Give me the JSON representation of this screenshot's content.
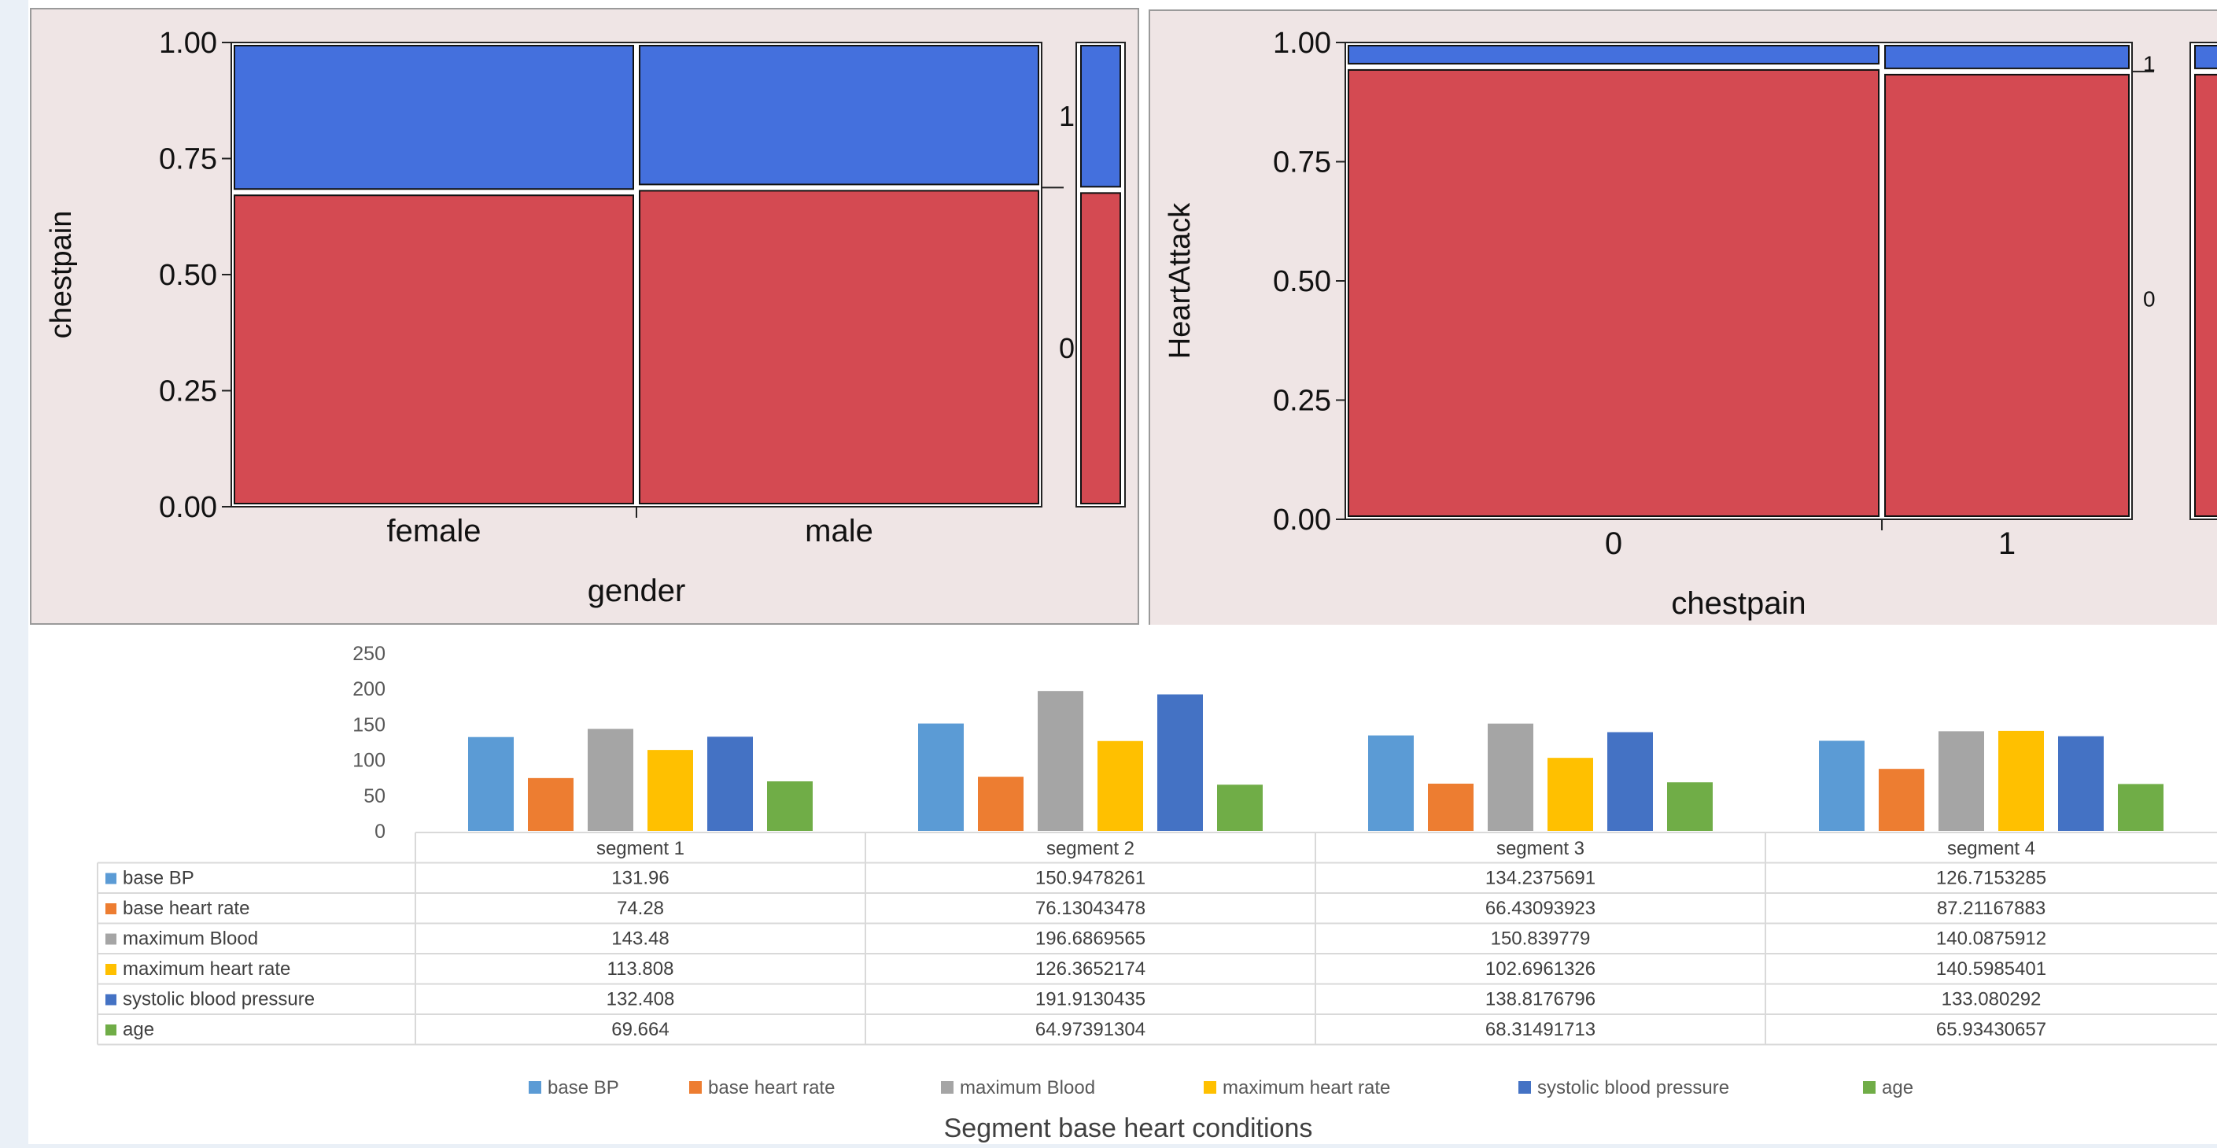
{
  "chart_data": [
    {
      "type": "mosaic",
      "xlabel": "gender",
      "ylabel": "chestpain",
      "yticks": [
        "0.00",
        "0.25",
        "0.50",
        "0.75",
        "1.00"
      ],
      "categories": [
        "female",
        "male"
      ],
      "widths": [
        0.5,
        0.5
      ],
      "levels": [
        "0",
        "1"
      ],
      "proportions": [
        {
          "category": "female",
          "0": 0.68,
          "1": 0.32
        },
        {
          "category": "male",
          "0": 0.69,
          "1": 0.31
        }
      ],
      "marginal": {
        "0": 0.685,
        "1": 0.315
      },
      "colors": {
        "0": "#d44a52",
        "1": "#4470dd"
      }
    },
    {
      "type": "mosaic",
      "xlabel": "chestpain",
      "ylabel": "HeartAttack",
      "yticks": [
        "0.00",
        "0.25",
        "0.50",
        "0.75",
        "1.00"
      ],
      "categories": [
        "0",
        "1"
      ],
      "widths": [
        0.685,
        0.315
      ],
      "levels": [
        "0",
        "1"
      ],
      "proportions": [
        {
          "category": "0",
          "0": 0.955,
          "1": 0.045
        },
        {
          "category": "1",
          "0": 0.945,
          "1": 0.055
        }
      ],
      "colors": {
        "0": "#d44a52",
        "1": "#4470dd"
      }
    },
    {
      "type": "bar",
      "title": "Segment base heart conditions",
      "categories": [
        "segment 1",
        "segment 2",
        "segment 3",
        "segment 4"
      ],
      "ylim": [
        0,
        250
      ],
      "yticks": [
        "0",
        "50",
        "100",
        "150",
        "200",
        "250"
      ],
      "legend_position": "bottom",
      "series": [
        {
          "name": "base BP",
          "color": "#5b9bd5",
          "values": [
            131.96,
            150.9478261,
            134.2375691,
            126.7153285
          ],
          "labels": [
            "131.96",
            "150.9478261",
            "134.2375691",
            "126.7153285"
          ]
        },
        {
          "name": "base heart rate",
          "color": "#ed7d31",
          "values": [
            74.28,
            76.13043478,
            66.43093923,
            87.21167883
          ],
          "labels": [
            "74.28",
            "76.13043478",
            "66.43093923",
            "87.21167883"
          ]
        },
        {
          "name": "maximum Blood",
          "color": "#a5a5a5",
          "values": [
            143.48,
            196.6869565,
            150.839779,
            140.0875912
          ],
          "labels": [
            "143.48",
            "196.6869565",
            "150.839779",
            "140.0875912"
          ]
        },
        {
          "name": "maximum heart rate",
          "color": "#ffc000",
          "values": [
            113.808,
            126.3652174,
            102.6961326,
            140.5985401
          ],
          "labels": [
            "113.808",
            "126.3652174",
            "102.6961326",
            "140.5985401"
          ]
        },
        {
          "name": "systolic blood pressure",
          "color": "#4472c4",
          "values": [
            132.408,
            191.9130435,
            138.8176796,
            133.080292
          ],
          "labels": [
            "132.408",
            "191.9130435",
            "138.8176796",
            "133.080292"
          ]
        },
        {
          "name": "age",
          "color": "#70ad47",
          "values": [
            69.664,
            64.97391304,
            68.31491713,
            65.93430657
          ],
          "labels": [
            "69.664",
            "64.97391304",
            "68.31491713",
            "65.93430657"
          ]
        }
      ]
    }
  ]
}
